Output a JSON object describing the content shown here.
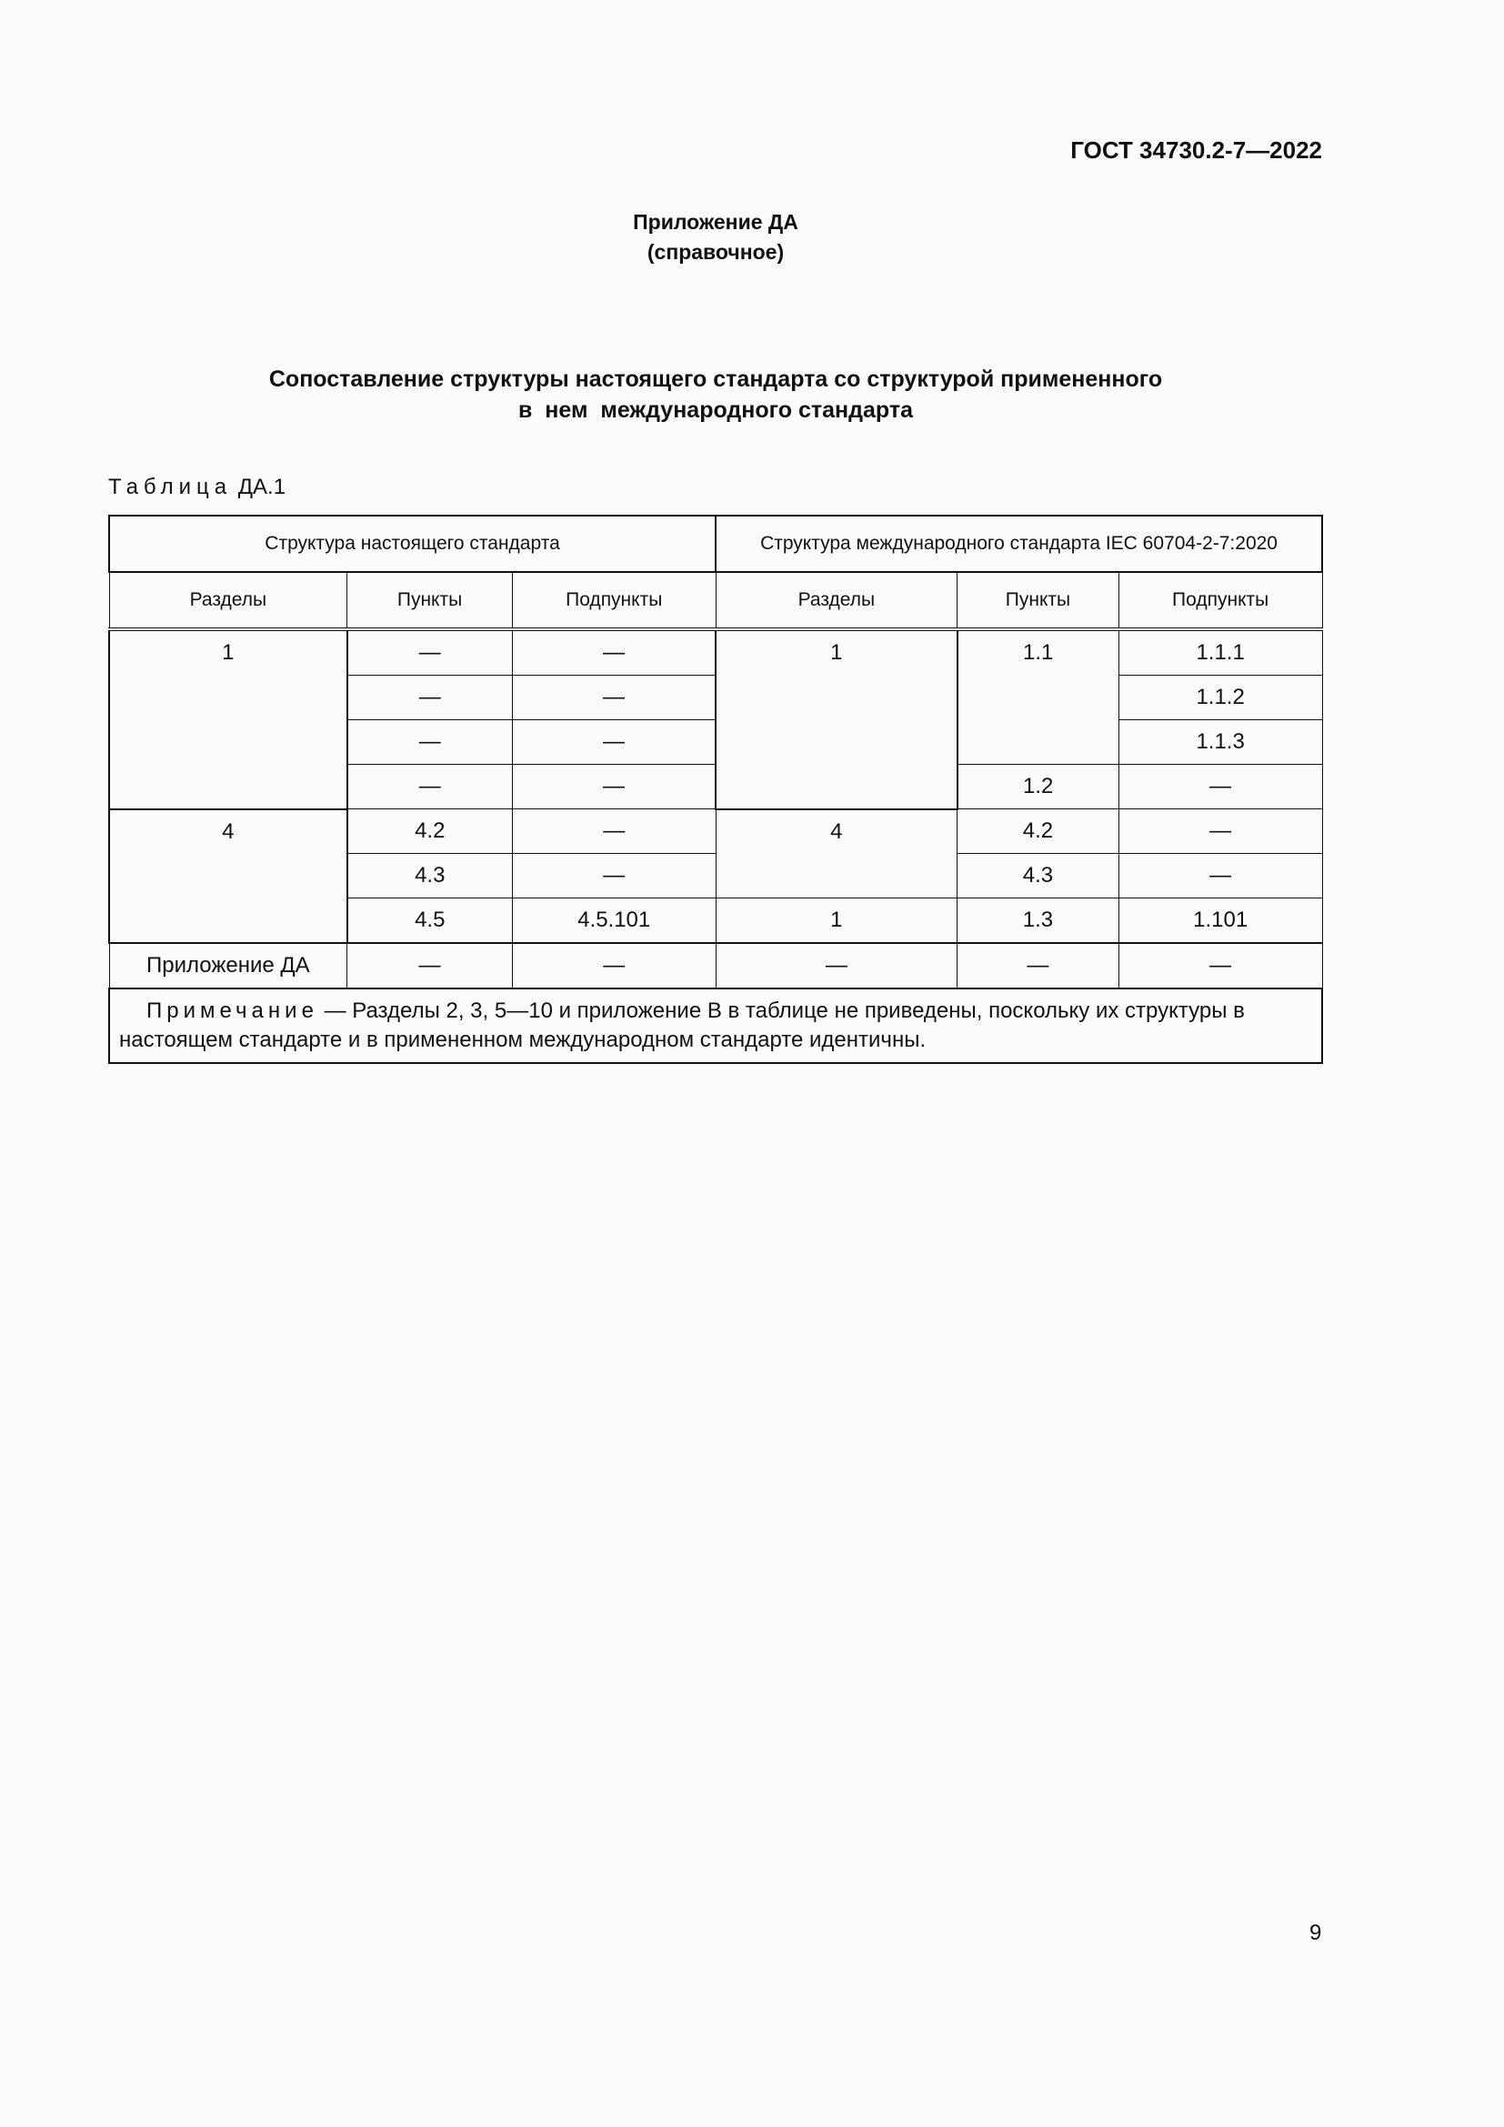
{
  "header": {
    "doc_code": "ГОСТ 34730.2-7—2022"
  },
  "appendix": {
    "title": "Приложение ДА",
    "subtitle": "(справочное)"
  },
  "heading": {
    "line1": "Сопоставление структуры настоящего стандарта со структурой примененного",
    "line2": "в  нем  международного стандарта"
  },
  "table": {
    "caption_prefix": "Таблица",
    "caption_id": "ДА.1",
    "group_headers": [
      "Структура настоящего стандарта",
      "Структура международного стандарта IEC 60704-2-7:2020"
    ],
    "column_headers": [
      "Разделы",
      "Пункты",
      "Подпункты",
      "Разделы",
      "Пункты",
      "Подпункты"
    ],
    "cells": {
      "r1": {
        "s1": "1",
        "p1": "—",
        "sp1": "—",
        "s2": "1",
        "p2": "1.1",
        "sp2": "1.1.1"
      },
      "r2": {
        "p1": "—",
        "sp1": "—",
        "sp2": "1.1.2"
      },
      "r3": {
        "p1": "—",
        "sp1": "—",
        "sp2": "1.1.3"
      },
      "r4": {
        "p1": "—",
        "sp1": "—",
        "p2": "1.2",
        "sp2": "—"
      },
      "r5": {
        "s1": "4",
        "p1": "4.2",
        "sp1": "—",
        "s2": "4",
        "p2": "4.2",
        "sp2": "—"
      },
      "r6": {
        "p1": "4.3",
        "sp1": "—",
        "p2": "4.3",
        "sp2": "—"
      },
      "r7": {
        "p1": "4.5",
        "sp1": "4.5.101",
        "s2": "1",
        "p2": "1.3",
        "sp2": "1.101"
      },
      "r8": {
        "s1": "Приложение ДА",
        "p1": "—",
        "sp1": "—",
        "s2": "—",
        "p2": "—",
        "sp2": "—"
      }
    },
    "note_label": "Примечание",
    "note_text": " — Разделы 2, 3, 5—10 и приложение В в таблице не приведены, поскольку их структуры в настоящем стандарте и в примененном международном стандарте идентичны."
  },
  "footer": {
    "page_number": "9"
  }
}
